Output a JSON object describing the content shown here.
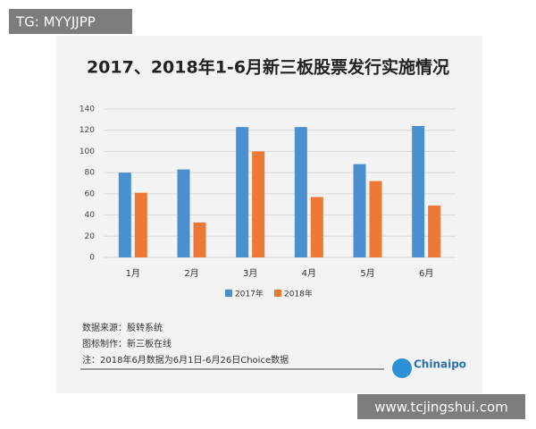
{
  "chart_data": {
    "type": "bar",
    "title": "2017、2018年1-6月新三板股票发行实施情况",
    "categories": [
      "1月",
      "2月",
      "3月",
      "4月",
      "5月",
      "6月"
    ],
    "series": [
      {
        "name": "2017年",
        "color": "#4a8fd0",
        "values": [
          80,
          83,
          123,
          123,
          88,
          124
        ]
      },
      {
        "name": "2018年",
        "color": "#ec7a36",
        "values": [
          61,
          33,
          100,
          57,
          72,
          49
        ]
      }
    ],
    "ylim": [
      0,
      140
    ],
    "yticks": [
      0,
      20,
      40,
      60,
      80,
      100,
      120,
      140
    ],
    "grid": true,
    "legend": "bottom",
    "notes": [
      "数据来源：股转系统",
      "图标制作：新三板在线",
      "注：2018年6月数据为6月1日-6月26日Choice数据"
    ],
    "logo": "Chinaipo"
  },
  "overlays": {
    "top_left": "TG: MYYJJPP",
    "bottom_right": "www.tcjingshui.com"
  }
}
